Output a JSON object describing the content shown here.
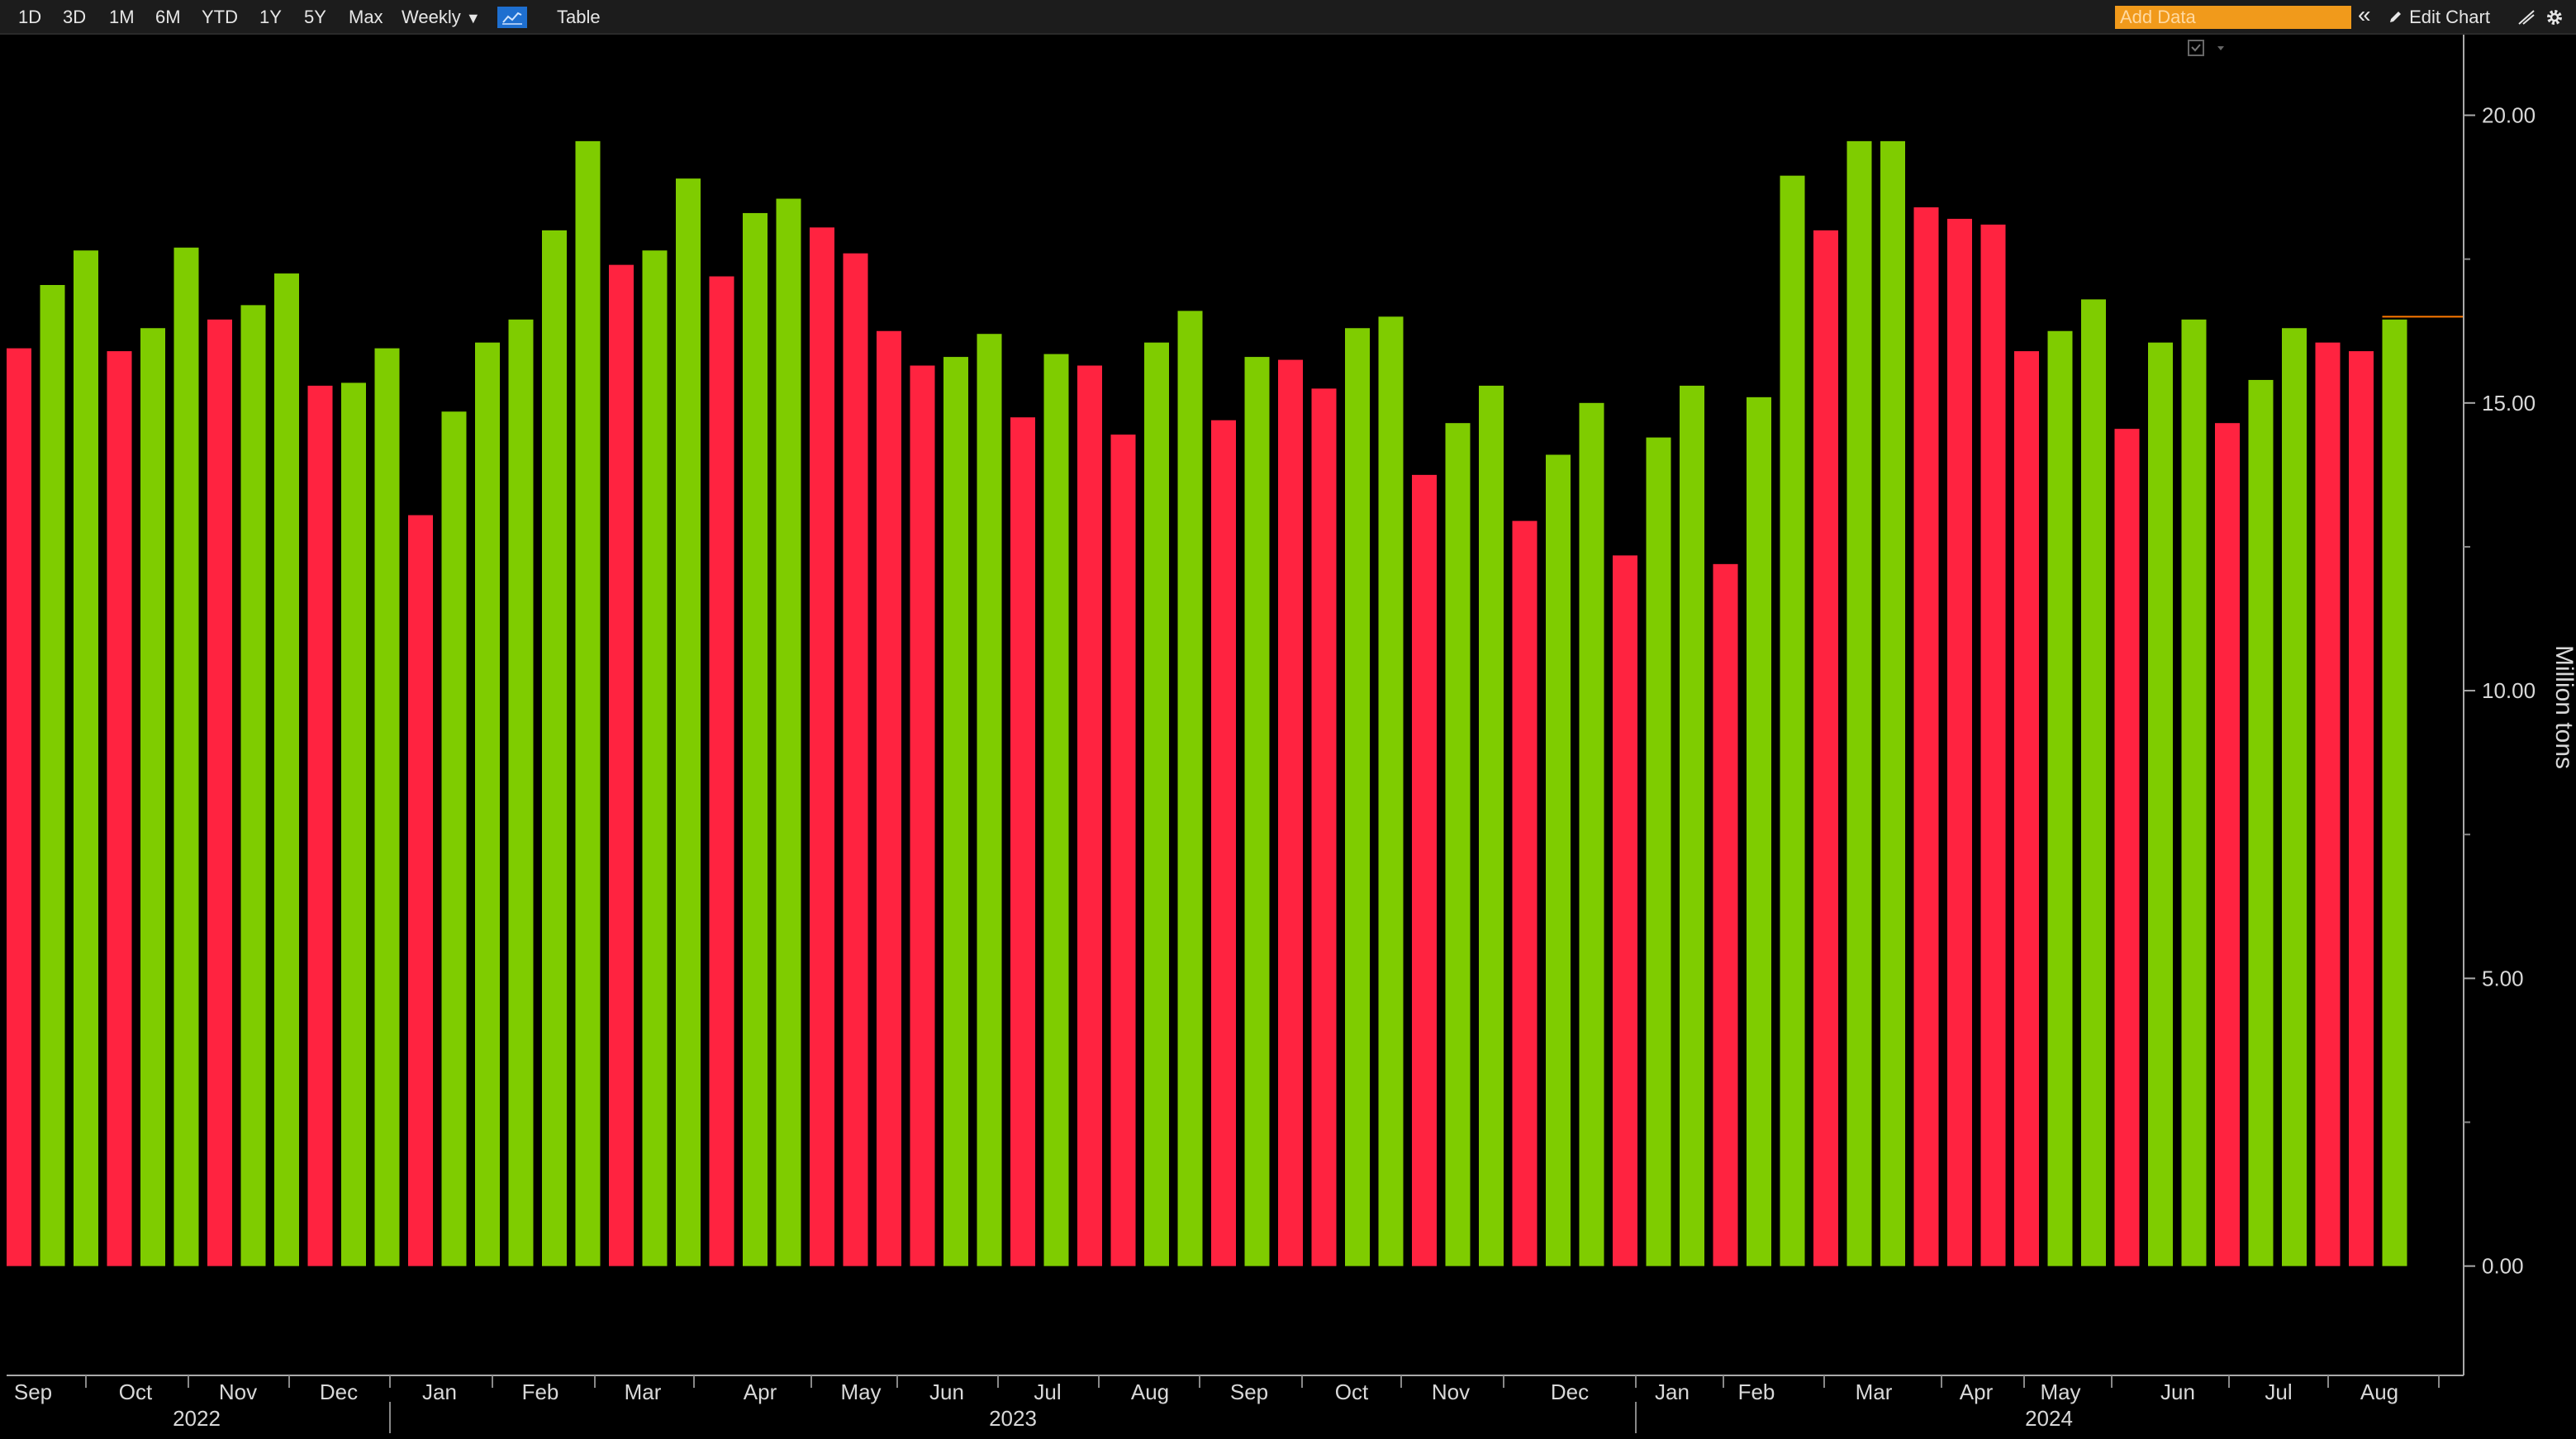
{
  "toolbar": {
    "ranges": [
      "1D",
      "3D",
      "1M",
      "6M",
      "YTD",
      "1Y",
      "5Y",
      "Max"
    ],
    "frequency": "Weekly",
    "dropdown_glyph": "▼",
    "table_label": "Table",
    "add_data_placeholder": "Add Data",
    "collapse_glyph": "«",
    "edit_chart_label": "Edit Chart",
    "chart_type_icon": "line-chart-icon",
    "settings_icon": "gear-icon"
  },
  "chart_data": {
    "type": "bar",
    "ylabel": "Million tons",
    "ylim": [
      -1.9,
      21.4
    ],
    "yticks": [
      0,
      5,
      10,
      15,
      20
    ],
    "ytick_labels": [
      "0.00",
      "5.00",
      "10.00",
      "15.00",
      "20.00"
    ],
    "last_value_line": 16.5,
    "grid": false,
    "colors": {
      "up": "#7fcc00",
      "down": "#ff2340"
    },
    "month_labels": [
      "Sep",
      "Oct",
      "Nov",
      "Dec",
      "Jan",
      "Feb",
      "Mar",
      "Apr",
      "May",
      "Jun",
      "Jul",
      "Aug",
      "Sep",
      "Oct",
      "Nov",
      "Dec",
      "Jan",
      "Feb",
      "Mar",
      "Apr",
      "May",
      "Jun",
      "Jul",
      "Aug"
    ],
    "year_labels": [
      "2022",
      "2023",
      "2024"
    ],
    "values": [
      15.95,
      17.05,
      17.65,
      15.9,
      16.3,
      17.7,
      16.45,
      16.7,
      17.25,
      15.3,
      15.35,
      15.95,
      13.05,
      14.85,
      16.05,
      16.45,
      18.0,
      19.55,
      17.4,
      17.65,
      18.9,
      17.2,
      18.3,
      18.55,
      18.05,
      17.6,
      16.25,
      15.65,
      15.8,
      16.2,
      14.75,
      15.85,
      15.65,
      14.45,
      16.05,
      16.6,
      14.7,
      15.8,
      15.75,
      15.25,
      16.3,
      16.5,
      13.75,
      14.65,
      15.3,
      12.95,
      14.1,
      15.0,
      12.35,
      14.4,
      15.3,
      12.2,
      15.1,
      18.95,
      18.0,
      19.55,
      19.55,
      18.4,
      18.2,
      18.1,
      15.9,
      16.25,
      16.8,
      14.55,
      16.05,
      16.45,
      14.65,
      15.4,
      16.3,
      16.05,
      15.9,
      16.45
    ]
  }
}
